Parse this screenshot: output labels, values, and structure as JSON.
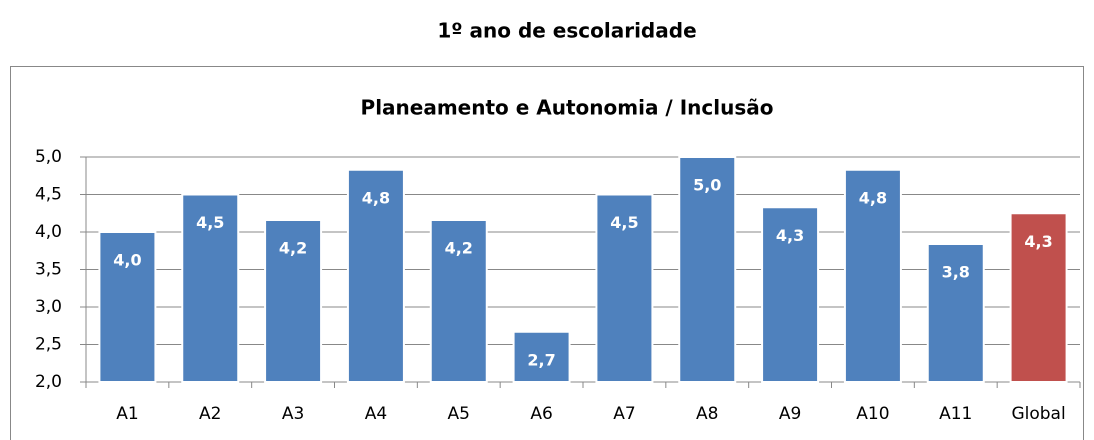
{
  "page_title": "1º ano de escolaridade",
  "chart_data": {
    "type": "bar",
    "title": "Planeamento e Autonomia / Inclusão",
    "categories": [
      "A1",
      "A2",
      "A3",
      "A4",
      "A5",
      "A6",
      "A7",
      "A8",
      "A9",
      "A10",
      "A11",
      "Global"
    ],
    "values": [
      4.0,
      4.5,
      4.16,
      4.83,
      4.16,
      2.67,
      4.5,
      5.0,
      4.33,
      4.83,
      3.84,
      4.25
    ],
    "value_labels": [
      "4,0",
      "4,5",
      "4,2",
      "4,8",
      "4,2",
      "2,7",
      "4,5",
      "5,0",
      "4,3",
      "4,8",
      "3,8",
      "4,3"
    ],
    "colors": [
      "#4f81bd",
      "#4f81bd",
      "#4f81bd",
      "#4f81bd",
      "#4f81bd",
      "#4f81bd",
      "#4f81bd",
      "#4f81bd",
      "#4f81bd",
      "#4f81bd",
      "#4f81bd",
      "#c0504d"
    ],
    "ylim": [
      2.0,
      5.0
    ],
    "yticks": [
      {
        "value": 2.0,
        "label": "2,0"
      },
      {
        "value": 2.5,
        "label": "2,5"
      },
      {
        "value": 3.0,
        "label": "3,0"
      },
      {
        "value": 3.5,
        "label": "3,5"
      },
      {
        "value": 4.0,
        "label": "4,0"
      },
      {
        "value": 4.5,
        "label": "4,5"
      },
      {
        "value": 5.0,
        "label": "5,0"
      }
    ],
    "grid": true
  }
}
